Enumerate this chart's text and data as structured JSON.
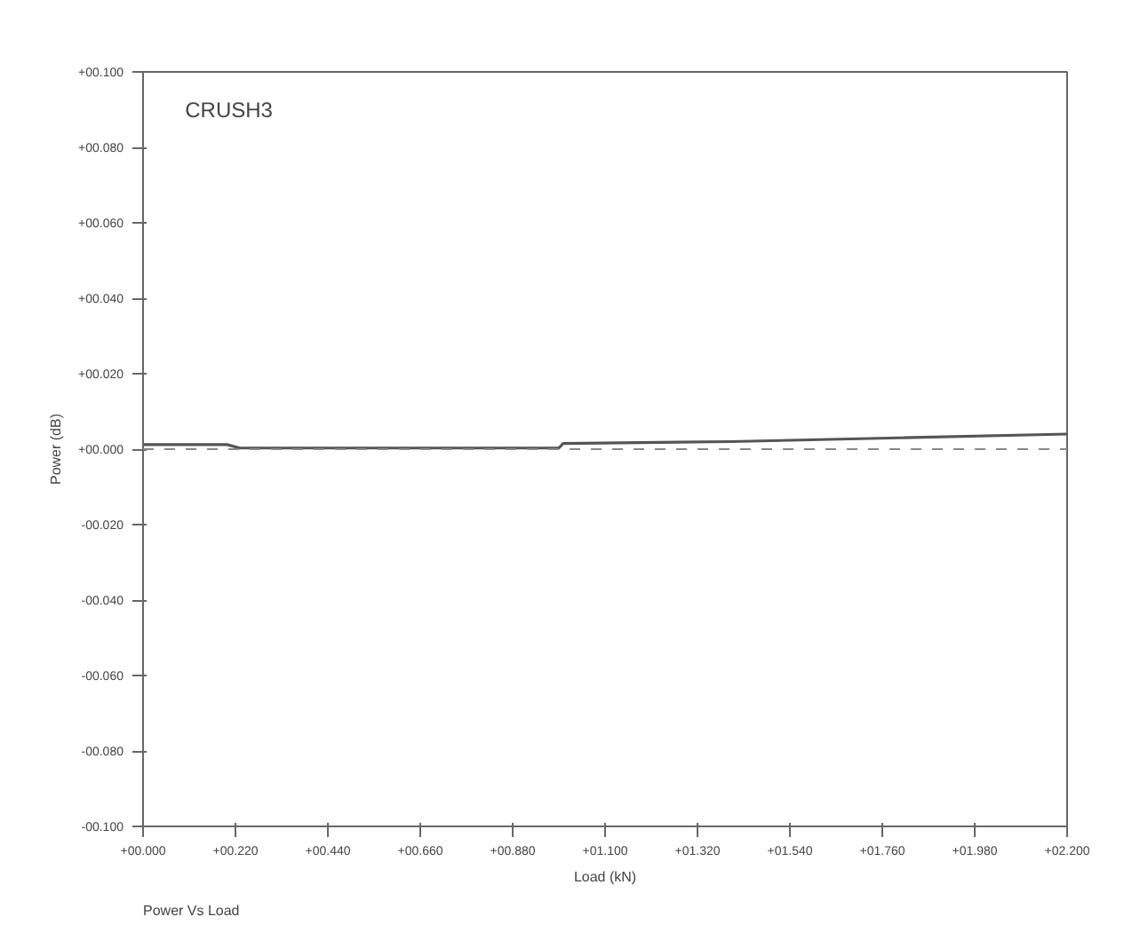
{
  "chart_data": {
    "type": "line",
    "title": "CRUSH3",
    "xlabel": "Load (kN)",
    "ylabel": "Power (dB)",
    "annotations": [
      "Power Vs Load"
    ],
    "x": [
      0,
      0.2,
      0.23,
      0.99,
      1.0,
      1.4,
      1.8,
      2.2
    ],
    "series": [
      {
        "color": "#555555",
        "values": [
          0.0012,
          0.0012,
          0.0003,
          0.0003,
          0.0015,
          0.002,
          0.003,
          0.004
        ]
      }
    ],
    "xlim": [
      0,
      2.2
    ],
    "ylim": [
      -0.1,
      0.1
    ],
    "xticks": [
      {
        "value": 0,
        "label": "+00.000"
      },
      {
        "value": 0.22,
        "label": "+00.220"
      },
      {
        "value": 0.44,
        "label": "+00.440"
      },
      {
        "value": 0.66,
        "label": "+00.660"
      },
      {
        "value": 0.88,
        "label": "+00.880"
      },
      {
        "value": 1.1,
        "label": "+01.100"
      },
      {
        "value": 1.32,
        "label": "+01.320"
      },
      {
        "value": 1.54,
        "label": "+01.540"
      },
      {
        "value": 1.76,
        "label": "+01.760"
      },
      {
        "value": 1.98,
        "label": "+01.980"
      },
      {
        "value": 2.2,
        "label": "+02.200"
      }
    ],
    "yticks": [
      {
        "value": -0.1,
        "label": "-00.100"
      },
      {
        "value": -0.08,
        "label": "-00.080"
      },
      {
        "value": -0.06,
        "label": "-00.060"
      },
      {
        "value": -0.04,
        "label": "-00.040"
      },
      {
        "value": -0.02,
        "label": "-00.020"
      },
      {
        "value": 0,
        "label": "+00.000"
      },
      {
        "value": 0.02,
        "label": "+00.020"
      },
      {
        "value": 0.04,
        "label": "+00.040"
      },
      {
        "value": 0.06,
        "label": "+00.060"
      },
      {
        "value": 0.08,
        "label": "+00.080"
      },
      {
        "value": 0.1,
        "label": "+00.100"
      }
    ],
    "ref_lines": [
      {
        "axis": "y",
        "value": 0,
        "color": "#888888",
        "line_style": "dashed"
      }
    ],
    "grid": false,
    "marker": "none",
    "line_style": "solid"
  }
}
